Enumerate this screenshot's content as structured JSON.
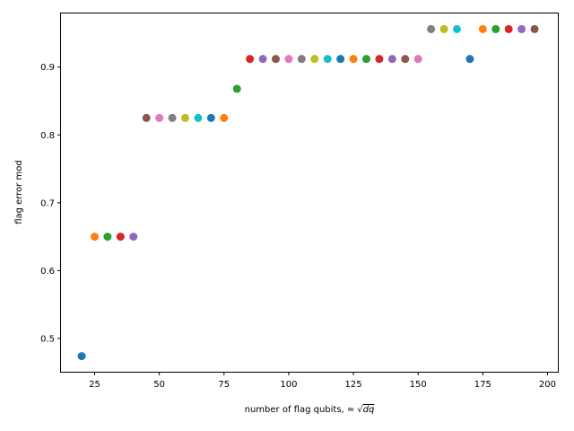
{
  "chart_data": {
    "type": "scatter",
    "title": "",
    "xlabel_prefix": "number of flag qubits, ",
    "xlabel_approx": "≈",
    "xlabel_radicand": "dq",
    "ylabel": "flag error mod",
    "xlim": [
      12,
      204
    ],
    "ylim": [
      0.451,
      0.979
    ],
    "x_ticks": [
      25,
      50,
      75,
      100,
      125,
      150,
      175,
      200
    ],
    "x_tick_labels": [
      "25",
      "50",
      "75",
      "100",
      "125",
      "150",
      "175",
      "200"
    ],
    "y_ticks": [
      0.5,
      0.6,
      0.7,
      0.8,
      0.9
    ],
    "y_tick_labels": [
      "0.5",
      "0.6",
      "0.7",
      "0.8",
      "0.9"
    ],
    "grid": false,
    "legend": "none",
    "colors": [
      "#1f77b4",
      "#ff7f0e",
      "#2ca02c",
      "#d62728",
      "#9467bd",
      "#8c564b",
      "#e377c2",
      "#7f7f7f",
      "#bcbd22",
      "#17becf"
    ],
    "points": [
      {
        "x": 20,
        "y": 0.474
      },
      {
        "x": 25,
        "y": 0.65
      },
      {
        "x": 30,
        "y": 0.65
      },
      {
        "x": 35,
        "y": 0.65
      },
      {
        "x": 40,
        "y": 0.65
      },
      {
        "x": 45,
        "y": 0.825
      },
      {
        "x": 50,
        "y": 0.825
      },
      {
        "x": 55,
        "y": 0.825
      },
      {
        "x": 60,
        "y": 0.825
      },
      {
        "x": 65,
        "y": 0.825
      },
      {
        "x": 70,
        "y": 0.825
      },
      {
        "x": 75,
        "y": 0.825
      },
      {
        "x": 80,
        "y": 0.868
      },
      {
        "x": 85,
        "y": 0.912
      },
      {
        "x": 90,
        "y": 0.912
      },
      {
        "x": 95,
        "y": 0.912
      },
      {
        "x": 100,
        "y": 0.912
      },
      {
        "x": 105,
        "y": 0.912
      },
      {
        "x": 110,
        "y": 0.912
      },
      {
        "x": 115,
        "y": 0.912
      },
      {
        "x": 120,
        "y": 0.912
      },
      {
        "x": 125,
        "y": 0.912
      },
      {
        "x": 130,
        "y": 0.912
      },
      {
        "x": 135,
        "y": 0.912
      },
      {
        "x": 140,
        "y": 0.912
      },
      {
        "x": 145,
        "y": 0.912
      },
      {
        "x": 150,
        "y": 0.912
      },
      {
        "x": 155,
        "y": 0.956
      },
      {
        "x": 160,
        "y": 0.956
      },
      {
        "x": 165,
        "y": 0.956
      },
      {
        "x": 170,
        "y": 0.912
      },
      {
        "x": 175,
        "y": 0.956
      },
      {
        "x": 180,
        "y": 0.956
      },
      {
        "x": 185,
        "y": 0.956
      },
      {
        "x": 190,
        "y": 0.956
      },
      {
        "x": 195,
        "y": 0.956
      }
    ]
  }
}
